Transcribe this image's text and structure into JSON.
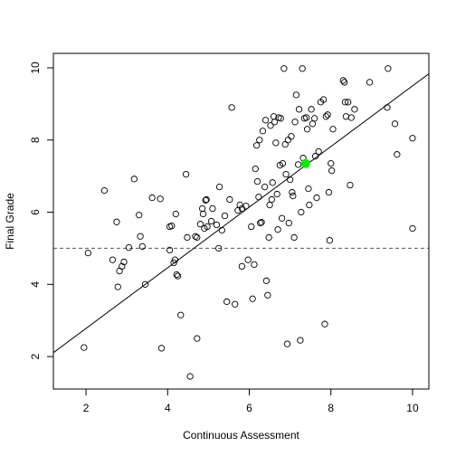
{
  "chart_data": {
    "type": "scatter",
    "title": "",
    "xlabel": "Continuous Assessment",
    "ylabel": "Final Grade",
    "xlim": [
      1.2,
      10.4
    ],
    "ylim": [
      1.1,
      10.4
    ],
    "xticks": [
      2,
      4,
      6,
      8,
      10
    ],
    "yticks": [
      2,
      4,
      6,
      8,
      10
    ],
    "xtick_labels": [
      "2",
      "4",
      "6",
      "8",
      "10"
    ],
    "ytick_labels": [
      "2",
      "4",
      "6",
      "8",
      "10"
    ],
    "grid": false,
    "legend": "none",
    "colors": {
      "points": "#000000",
      "highlight": "#00ee00",
      "reference": "#555555",
      "fit": "#000000"
    },
    "reference_line": {
      "y": 5.0,
      "style": "dashed"
    },
    "fit_line": {
      "slope": 0.84,
      "intercept": 1.1
    },
    "highlight_point": {
      "x": 7.38,
      "y": 7.35
    },
    "points": [
      [
        1.95,
        2.25
      ],
      [
        2.05,
        4.87
      ],
      [
        2.45,
        6.6
      ],
      [
        2.65,
        4.68
      ],
      [
        2.75,
        5.73
      ],
      [
        2.78,
        3.93
      ],
      [
        2.82,
        4.37
      ],
      [
        2.88,
        4.5
      ],
      [
        2.93,
        4.62
      ],
      [
        3.05,
        5.02
      ],
      [
        3.18,
        6.92
      ],
      [
        3.3,
        5.92
      ],
      [
        3.33,
        5.33
      ],
      [
        3.38,
        5.05
      ],
      [
        3.45,
        4.0
      ],
      [
        3.62,
        6.4
      ],
      [
        3.82,
        6.37
      ],
      [
        3.85,
        2.23
      ],
      [
        4.05,
        4.95
      ],
      [
        4.05,
        5.6
      ],
      [
        4.1,
        5.62
      ],
      [
        4.15,
        4.6
      ],
      [
        4.18,
        4.68
      ],
      [
        4.2,
        5.95
      ],
      [
        4.22,
        4.27
      ],
      [
        4.25,
        4.23
      ],
      [
        4.32,
        3.15
      ],
      [
        4.45,
        7.05
      ],
      [
        4.48,
        5.3
      ],
      [
        4.55,
        1.45
      ],
      [
        4.68,
        5.33
      ],
      [
        4.72,
        5.3
      ],
      [
        4.72,
        2.5
      ],
      [
        4.8,
        5.67
      ],
      [
        4.85,
        6.1
      ],
      [
        4.87,
        5.95
      ],
      [
        4.9,
        5.55
      ],
      [
        4.93,
        6.33
      ],
      [
        4.95,
        6.35
      ],
      [
        4.97,
        5.6
      ],
      [
        5.07,
        5.75
      ],
      [
        5.1,
        6.1
      ],
      [
        5.2,
        5.65
      ],
      [
        5.25,
        5.0
      ],
      [
        5.27,
        6.7
      ],
      [
        5.33,
        5.5
      ],
      [
        5.4,
        5.9
      ],
      [
        5.45,
        3.52
      ],
      [
        5.52,
        6.35
      ],
      [
        5.57,
        8.9
      ],
      [
        5.65,
        3.45
      ],
      [
        5.72,
        6.05
      ],
      [
        5.77,
        6.2
      ],
      [
        5.82,
        4.5
      ],
      [
        5.82,
        6.1
      ],
      [
        5.92,
        6.17
      ],
      [
        5.97,
        4.68
      ],
      [
        6.05,
        5.6
      ],
      [
        6.08,
        3.6
      ],
      [
        6.12,
        4.55
      ],
      [
        6.15,
        7.2
      ],
      [
        6.18,
        7.85
      ],
      [
        6.2,
        6.85
      ],
      [
        6.23,
        6.42
      ],
      [
        6.25,
        8.0
      ],
      [
        6.27,
        5.7
      ],
      [
        6.3,
        5.72
      ],
      [
        6.33,
        8.25
      ],
      [
        6.38,
        6.7
      ],
      [
        6.4,
        8.55
      ],
      [
        6.42,
        4.1
      ],
      [
        6.45,
        3.7
      ],
      [
        6.48,
        5.3
      ],
      [
        6.5,
        6.2
      ],
      [
        6.52,
        8.4
      ],
      [
        6.55,
        6.35
      ],
      [
        6.57,
        6.82
      ],
      [
        6.6,
        8.65
      ],
      [
        6.62,
        8.5
      ],
      [
        6.65,
        7.92
      ],
      [
        6.68,
        6.5
      ],
      [
        6.7,
        5.52
      ],
      [
        6.72,
        8.62
      ],
      [
        6.75,
        7.3
      ],
      [
        6.77,
        8.6
      ],
      [
        6.8,
        5.83
      ],
      [
        6.82,
        7.35
      ],
      [
        6.85,
        9.98
      ],
      [
        6.88,
        7.88
      ],
      [
        6.9,
        7.05
      ],
      [
        6.93,
        2.35
      ],
      [
        6.95,
        8.0
      ],
      [
        6.97,
        5.7
      ],
      [
        7.0,
        6.9
      ],
      [
        7.03,
        8.1
      ],
      [
        7.05,
        6.55
      ],
      [
        7.07,
        6.45
      ],
      [
        7.1,
        5.3
      ],
      [
        7.12,
        8.5
      ],
      [
        7.15,
        9.25
      ],
      [
        7.2,
        7.32
      ],
      [
        7.22,
        8.85
      ],
      [
        7.25,
        2.45
      ],
      [
        7.27,
        6.0
      ],
      [
        7.3,
        9.98
      ],
      [
        7.32,
        7.5
      ],
      [
        7.35,
        8.6
      ],
      [
        7.4,
        8.62
      ],
      [
        7.42,
        8.3
      ],
      [
        7.45,
        6.65
      ],
      [
        7.47,
        6.2
      ],
      [
        7.52,
        8.85
      ],
      [
        7.55,
        8.45
      ],
      [
        7.6,
        8.6
      ],
      [
        7.62,
        7.55
      ],
      [
        7.65,
        6.4
      ],
      [
        7.7,
        7.68
      ],
      [
        7.75,
        9.05
      ],
      [
        7.82,
        9.12
      ],
      [
        7.85,
        2.9
      ],
      [
        7.88,
        8.65
      ],
      [
        7.92,
        8.7
      ],
      [
        7.95,
        6.55
      ],
      [
        7.97,
        5.22
      ],
      [
        8.0,
        7.35
      ],
      [
        8.02,
        7.15
      ],
      [
        8.05,
        8.3
      ],
      [
        8.3,
        9.65
      ],
      [
        8.33,
        9.6
      ],
      [
        8.35,
        9.05
      ],
      [
        8.37,
        8.65
      ],
      [
        8.42,
        9.05
      ],
      [
        8.47,
        6.75
      ],
      [
        8.5,
        8.62
      ],
      [
        8.58,
        8.85
      ],
      [
        8.95,
        9.6
      ],
      [
        9.38,
        8.9
      ],
      [
        9.4,
        9.98
      ],
      [
        9.57,
        8.45
      ],
      [
        9.62,
        7.6
      ],
      [
        10.0,
        8.05
      ],
      [
        10.0,
        5.55
      ]
    ]
  }
}
